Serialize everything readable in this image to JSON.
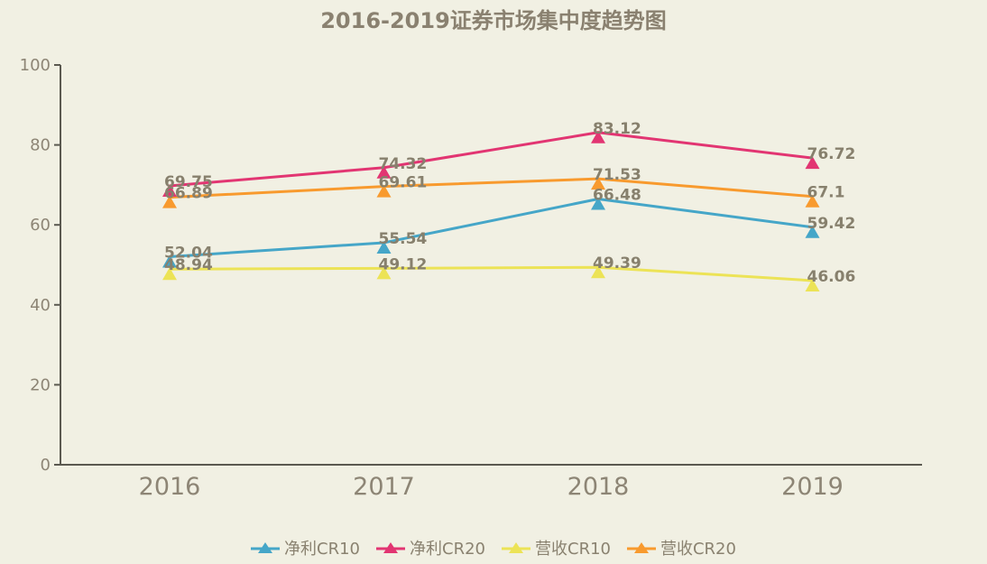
{
  "title": "2016-2019证券市场集中度趋势图",
  "colors": {
    "background": "#f1f0e3",
    "axis_line": "#5b5950",
    "tick_label": "#8d8575",
    "data_label": "#87806d",
    "title_color": "#8a8170",
    "legend_label": "#8a8270"
  },
  "chart_data": {
    "type": "line",
    "title": "2016-2019证券市场集中度趋势图",
    "categories": [
      "2016",
      "2017",
      "2018",
      "2019"
    ],
    "series": [
      {
        "name": "净利CR10",
        "color": "#45a6c8",
        "values": [
          52.04,
          55.54,
          66.48,
          59.42
        ]
      },
      {
        "name": "净利CR20",
        "color": "#e23572",
        "values": [
          69.75,
          74.32,
          83.12,
          76.72
        ]
      },
      {
        "name": "营收CR10",
        "color": "#ece356",
        "values": [
          48.94,
          49.12,
          49.39,
          46.06
        ]
      },
      {
        "name": "营收CR20",
        "color": "#f89a2e",
        "values": [
          66.89,
          69.61,
          71.53,
          67.1
        ]
      }
    ],
    "xlabel": "",
    "ylabel": "",
    "ylim": [
      0,
      100
    ],
    "yticks": [
      0,
      20,
      40,
      60,
      80,
      100
    ],
    "marker": "triangle",
    "grid": false,
    "legend_position": "bottom",
    "data_labels_shown": true
  }
}
